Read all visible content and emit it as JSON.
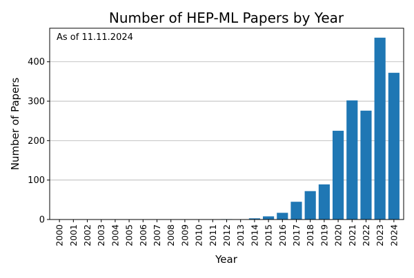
{
  "chart_data": {
    "type": "bar",
    "title": "Number of HEP-ML Papers by Year",
    "xlabel": "Year",
    "ylabel": "Number of Papers",
    "annotation": "As of 11.11.2024",
    "categories": [
      "2000",
      "2001",
      "2002",
      "2003",
      "2004",
      "2005",
      "2006",
      "2007",
      "2008",
      "2009",
      "2010",
      "2011",
      "2012",
      "2013",
      "2014",
      "2015",
      "2016",
      "2017",
      "2018",
      "2019",
      "2020",
      "2021",
      "2022",
      "2023",
      "2024"
    ],
    "values": [
      0,
      0,
      0,
      0,
      0,
      0,
      0,
      0,
      0,
      0,
      0,
      0,
      1,
      0,
      3,
      8,
      17,
      45,
      72,
      89,
      225,
      302,
      276,
      461,
      372
    ],
    "ylim": [
      0,
      485
    ],
    "yticks": [
      0,
      100,
      200,
      300,
      400
    ],
    "grid": "horizontal",
    "bar_color": "#1f77b4",
    "grid_color": "#b0b0b0"
  }
}
